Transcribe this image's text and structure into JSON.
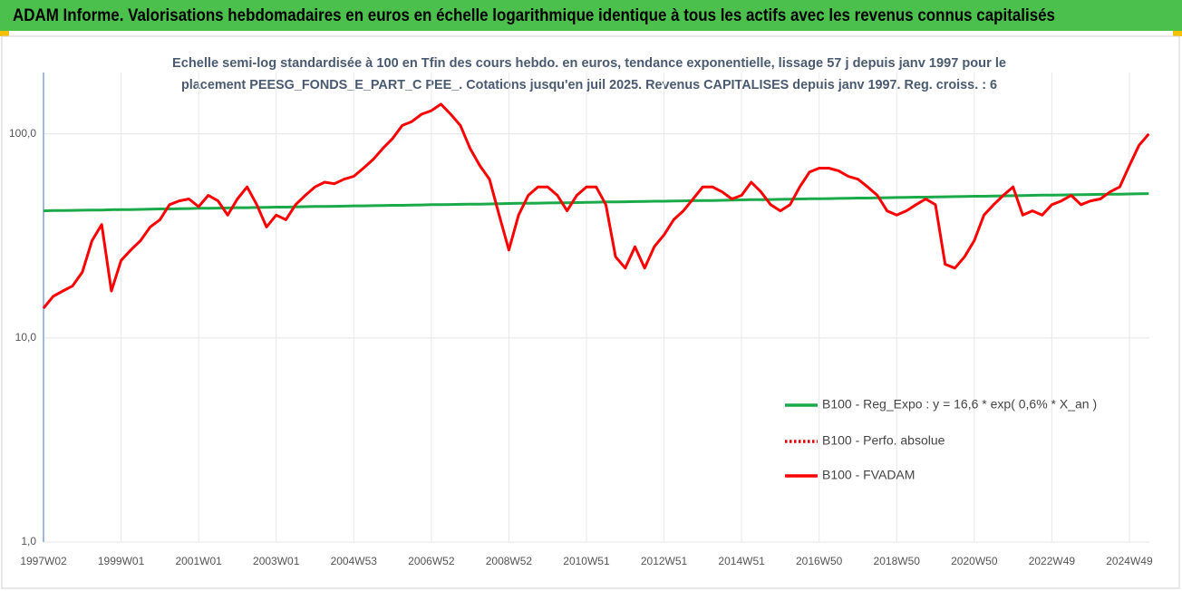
{
  "header": {
    "title": "ADAM Informe. Valorisations hebdomadaires en euros en échelle logarithmique identique à tous les actifs avec les revenus connus capitalisés"
  },
  "chart_data": {
    "type": "line",
    "subtitle_lines": [
      "Echelle semi-log standardisée à 100 en Tfin des cours hebdo. en euros, tendance exponentielle, lissage 57 j depuis janv 1997 pour le",
      "placement PEESG_FONDS_E_PART_C PEE_. Cotations jusqu'en juil 2025. Revenus CAPITALISES depuis janv 1997. Reg. croiss. : 6"
    ],
    "categories": [
      "1997W02",
      null,
      null,
      null,
      null,
      null,
      null,
      null,
      "1999W01",
      null,
      null,
      null,
      null,
      null,
      null,
      null,
      "2001W01",
      null,
      null,
      null,
      null,
      null,
      null,
      null,
      "2003W01",
      null,
      null,
      null,
      null,
      null,
      null,
      null,
      "2004W53",
      null,
      null,
      null,
      null,
      null,
      null,
      null,
      "2006W52",
      null,
      null,
      null,
      null,
      null,
      null,
      null,
      "2008W52",
      null,
      null,
      null,
      null,
      null,
      null,
      null,
      "2010W51",
      null,
      null,
      null,
      null,
      null,
      null,
      null,
      "2012W51",
      null,
      null,
      null,
      null,
      null,
      null,
      null,
      "2014W51",
      null,
      null,
      null,
      null,
      null,
      null,
      null,
      "2016W50",
      null,
      null,
      null,
      null,
      null,
      null,
      null,
      "2018W50",
      null,
      null,
      null,
      null,
      null,
      null,
      null,
      "2020W50",
      null,
      null,
      null,
      null,
      null,
      null,
      null,
      "2022W49",
      null,
      null,
      null,
      null,
      null,
      null,
      null,
      "2024W49",
      null,
      null
    ],
    "log_scale": true,
    "grid": true,
    "legend": "right",
    "ylim": [
      1,
      200
    ],
    "yticks": [
      {
        "value": 1,
        "label": "1,0"
      },
      {
        "value": 10,
        "label": "10,0"
      },
      {
        "value": 100,
        "label": "100,0"
      }
    ],
    "series": [
      {
        "name": "B100 - Reg_Expo : y = 16,6 * exp( 0,6% *  X_an )",
        "color": "#1aaa4a",
        "style": "solid",
        "values": [
          42.0,
          42.1,
          42.1,
          42.2,
          42.3,
          42.4,
          42.4,
          42.5,
          42.6,
          42.6,
          42.7,
          42.8,
          42.9,
          42.9,
          43.0,
          43.1,
          43.2,
          43.2,
          43.3,
          43.4,
          43.5,
          43.5,
          43.6,
          43.7,
          43.8,
          43.8,
          43.9,
          44.0,
          44.1,
          44.1,
          44.2,
          44.3,
          44.4,
          44.4,
          44.5,
          44.6,
          44.7,
          44.7,
          44.8,
          44.9,
          45.0,
          45.0,
          45.1,
          45.2,
          45.3,
          45.3,
          45.4,
          45.5,
          45.6,
          45.7,
          45.7,
          45.8,
          45.9,
          46.0,
          46.0,
          46.1,
          46.2,
          46.3,
          46.4,
          46.4,
          46.5,
          46.6,
          46.7,
          46.8,
          46.8,
          46.9,
          47.0,
          47.1,
          47.2,
          47.2,
          47.3,
          47.4,
          47.5,
          47.6,
          47.6,
          47.7,
          47.8,
          47.9,
          48.0,
          48.1,
          48.1,
          48.2,
          48.3,
          48.4,
          48.5,
          48.5,
          48.6,
          48.7,
          48.8,
          48.9,
          49.0,
          49.0,
          49.1,
          49.2,
          49.3,
          49.4,
          49.5,
          49.5,
          49.6,
          49.7,
          49.8,
          49.9,
          50.0,
          50.1,
          50.1,
          50.2,
          50.3,
          50.4,
          50.5,
          50.6,
          50.7,
          50.7,
          50.8,
          50.9,
          51.0
        ]
      },
      {
        "name": "B100 - Perfo. absolue",
        "color": "#e00000",
        "style": "dotted",
        "values": [
          14,
          16,
          17,
          18,
          21,
          30,
          36,
          17,
          24,
          27,
          30,
          35,
          38,
          45,
          47,
          48,
          44,
          50,
          47,
          40,
          48,
          55,
          45,
          35,
          40,
          38,
          45,
          50,
          55,
          58,
          57,
          60,
          62,
          68,
          75,
          85,
          95,
          110,
          115,
          125,
          130,
          140,
          125,
          110,
          85,
          70,
          60,
          40,
          27,
          40,
          50,
          55,
          55,
          50,
          42,
          50,
          55,
          55,
          45,
          25,
          22,
          28,
          22,
          28,
          32,
          38,
          42,
          48,
          55,
          55,
          52,
          48,
          50,
          58,
          52,
          45,
          42,
          45,
          55,
          65,
          68,
          68,
          66,
          62,
          60,
          55,
          50,
          42,
          40,
          42,
          45,
          48,
          45,
          23,
          22,
          25,
          30,
          40,
          45,
          50,
          55,
          40,
          42,
          40,
          45,
          47,
          50,
          45,
          47,
          48,
          52,
          55,
          70,
          88,
          100
        ]
      },
      {
        "name": "B100 - FVADAM",
        "color": "#ff0000",
        "style": "solid",
        "values": [
          14,
          16,
          17,
          18,
          21,
          30,
          36,
          17,
          24,
          27,
          30,
          35,
          38,
          45,
          47,
          48,
          44,
          50,
          47,
          40,
          48,
          55,
          45,
          35,
          40,
          38,
          45,
          50,
          55,
          58,
          57,
          60,
          62,
          68,
          75,
          85,
          95,
          110,
          115,
          125,
          130,
          140,
          125,
          110,
          85,
          70,
          60,
          40,
          27,
          40,
          50,
          55,
          55,
          50,
          42,
          50,
          55,
          55,
          45,
          25,
          22,
          28,
          22,
          28,
          32,
          38,
          42,
          48,
          55,
          55,
          52,
          48,
          50,
          58,
          52,
          45,
          42,
          45,
          55,
          65,
          68,
          68,
          66,
          62,
          60,
          55,
          50,
          42,
          40,
          42,
          45,
          48,
          45,
          23,
          22,
          25,
          30,
          40,
          45,
          50,
          55,
          40,
          42,
          40,
          45,
          47,
          50,
          45,
          47,
          48,
          52,
          55,
          70,
          88,
          100
        ]
      }
    ]
  }
}
